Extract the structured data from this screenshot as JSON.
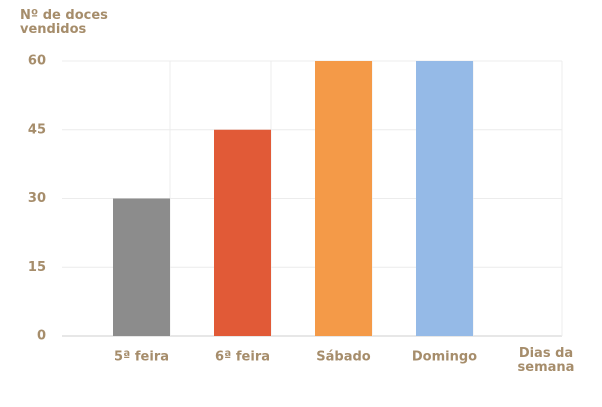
{
  "chart_data": {
    "type": "bar",
    "y_label": "Nº de doces vendidos",
    "x_label": "Dias da semana",
    "categories": [
      "5ª feira",
      "6ª feira",
      "Sábado",
      "Domingo"
    ],
    "values": [
      30,
      45,
      60,
      60
    ],
    "colors": [
      "#8c8c8c",
      "#e15a37",
      "#f49a48",
      "#95bae7"
    ],
    "ylim": [
      0,
      60
    ],
    "yticks": [
      0,
      15,
      30,
      45,
      60
    ],
    "grid": true
  }
}
